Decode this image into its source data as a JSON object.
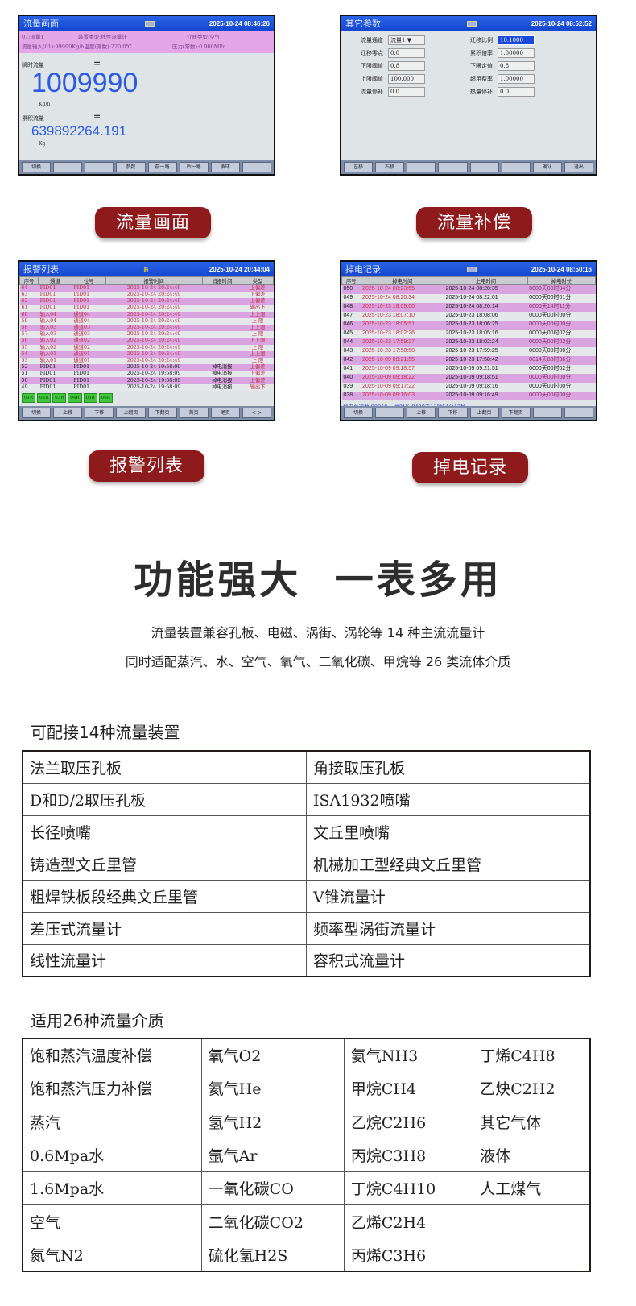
{
  "screens": {
    "flow": {
      "title": "流量画面",
      "datetime": "2025-10-24 08:46:26",
      "info": {
        "channel": "01:流量1",
        "device_type": "装置类型:线性流量计",
        "medium": "介质类型:空气",
        "input": "流量输入(01):99999Kg/h温度(常数):220.0℃",
        "pressure": "压力(常数):0.900MPa"
      },
      "instant_label": "瞬时流量",
      "eq": "=",
      "instant_value": "1009990",
      "instant_unit": "Kg/h",
      "total_label": "累积流量",
      "total_value": "639892264.191",
      "total_unit": "Kg",
      "buttons": [
        "切换",
        "",
        "",
        "参数",
        "前一路",
        "后一路",
        "循环",
        ""
      ]
    },
    "params": {
      "title": "其它参数",
      "datetime": "2025-10-24 08:52:52",
      "fields": [
        {
          "label": "流量通道",
          "value": "流量1 ▼"
        },
        {
          "label": "迁移比例",
          "value": "10.1000",
          "selected": true
        },
        {
          "label": "迁移零点",
          "value": "0.0"
        },
        {
          "label": "累积倍率",
          "value": "1.00000"
        },
        {
          "label": "下限阈值",
          "value": "0.8"
        },
        {
          "label": "下限定值",
          "value": "0.8"
        },
        {
          "label": "上限阈值",
          "value": "100.000"
        },
        {
          "label": "超用费率",
          "value": "1.00000"
        },
        {
          "label": "流量停补",
          "value": "0.0"
        },
        {
          "label": "热量停补",
          "value": "0.0"
        }
      ],
      "buttons": [
        "左移",
        "右移",
        "",
        "",
        "",
        "",
        "确认",
        "退出"
      ]
    },
    "alarm": {
      "title": "报警列表",
      "datetime": "2025-10-24 20:44:04",
      "columns": [
        "序号",
        "通道",
        "位号",
        "报警时间",
        "消报时间",
        "类型"
      ],
      "rows": [
        [
          "64",
          "PID01",
          "PID01",
          "2025-10-24 20:24:49",
          "",
          "上偏差"
        ],
        [
          "63",
          "PID01",
          "PID01",
          "2025-10-24 20:24:49",
          "",
          "上偏差"
        ],
        [
          "62",
          "PID01",
          "PID01",
          "2025-10-24 20:24:49",
          "",
          "上偏差"
        ],
        [
          "61",
          "PID01",
          "PID01",
          "2025-10-24 20:24:49",
          "",
          "输出下"
        ],
        [
          "60",
          "输入04",
          "通道04",
          "2025-10-24 20:24:49",
          "",
          "上上限"
        ],
        [
          "59",
          "输入04",
          "通道04",
          "2025-10-24 20:24:49",
          "",
          "上 限"
        ],
        [
          "58",
          "输入03",
          "通道03",
          "2025-10-24 20:24:49",
          "",
          "上上限"
        ],
        [
          "57",
          "输入03",
          "通道03",
          "2025-10-24 20:24:49",
          "",
          "上 限"
        ],
        [
          "56",
          "输入02",
          "通道02",
          "2025-10-24 20:24:49",
          "",
          "上上限"
        ],
        [
          "55",
          "输入02",
          "通道02",
          "2025-10-24 20:24:49",
          "",
          "上 限"
        ],
        [
          "54",
          "输入01",
          "通道01",
          "2025-10-24 20:24:49",
          "",
          "上上限"
        ],
        [
          "53",
          "输入01",
          "通道01",
          "2025-10-24 20:24:49",
          "",
          "上 限"
        ],
        [
          "52",
          "PID01",
          "PID01",
          "2025-10-24 19:58:09",
          "掉电消报",
          "上偏差"
        ],
        [
          "51",
          "PID01",
          "PID01",
          "2025-10-24 19:58:09",
          "掉电消报",
          "上偏差"
        ],
        [
          "50",
          "PID01",
          "PID01",
          "2025-10-24 19:58:09",
          "掉电消报",
          "上偏差"
        ],
        [
          "49",
          "PID01",
          "PID01",
          "2025-10-24 19:58:09",
          "掉电消报",
          "输出下"
        ]
      ],
      "relays": [
        "01R",
        "02R",
        "03R",
        "04R",
        "05R",
        "06R"
      ],
      "buttons": [
        "切换",
        "上移",
        "下移",
        "上翻页",
        "下翻页",
        "首页",
        "尾页",
        "<->"
      ]
    },
    "power": {
      "title": "掉电记录",
      "datetime": "2025-10-24 08:50:16",
      "columns": [
        "序号",
        "掉电时间",
        "上电时间",
        "掉电时长"
      ],
      "rows": [
        [
          "050",
          "2025-10-24 08:23:55",
          "2025-10-24 08:28:35",
          "0000天00时04分"
        ],
        [
          "049",
          "2025-10-24 08:20:34",
          "2025-10-24 08:22:01",
          "0000天00时01分"
        ],
        [
          "048",
          "2025-10-23 18:09:00",
          "2025-10-24 08:20:14",
          "0000天14时11分"
        ],
        [
          "047",
          "2025-10-23 18:07:10",
          "2025-10-23 18:08:06",
          "0000天00时00分"
        ],
        [
          "046",
          "2025-10-23 18:05:51",
          "2025-10-23 18:06:25",
          "0000天00时00分"
        ],
        [
          "045",
          "2025-10-23 18:02:26",
          "2025-10-23 18:05:16",
          "0000天00时02分"
        ],
        [
          "044",
          "2025-10-23 17:59:27",
          "2025-10-23 18:02:24",
          "0000天00时02分"
        ],
        [
          "043",
          "2025-10-23 17:58:58",
          "2025-10-23 17:59:25",
          "0000天00时00分"
        ],
        [
          "042",
          "2025-10-09 09:21:55",
          "2025-10-23 17:58:42",
          "0014天08时36分"
        ],
        [
          "041",
          "2025-10-09 09:18:57",
          "2025-10-09 09:21:51",
          "0000天00时02分"
        ],
        [
          "040",
          "2025-10-09 09:18:22",
          "2025-10-09 09:18:51",
          "0000天00时00分"
        ],
        [
          "039",
          "2025-10-09 09:17:22",
          "2025-10-09 09:18:16",
          "0000天00时00分"
        ],
        [
          "038",
          "2025-10-09 09:16:03",
          "2025-10-09 09:16:49",
          "0000天00时00分"
        ]
      ],
      "summary_count": "掉电总次数:00050",
      "summary_total": "总时长:0420天13时54分17秒",
      "buttons": [
        "切换",
        "",
        "上移",
        "下移",
        "上翻页",
        "下翻页",
        "",
        ""
      ]
    }
  },
  "captions": [
    "流量画面",
    "流量补偿",
    "报警列表",
    "掉电记录"
  ],
  "headline": "功能强大  一表多用",
  "subtitle1": "流量装置兼容孔板、电磁、涡街、涡轮等 14 种主流流量计",
  "subtitle2": "同时适配蒸汽、水、空气、氧气、二氧化碳、甲烷等 26 类流体介质",
  "devices": {
    "title": "可配接14种流量装置",
    "rows": [
      [
        "法兰取压孔板",
        "角接取压孔板"
      ],
      [
        "D和D/2取压孔板",
        "ISA1932喷嘴"
      ],
      [
        "长径喷嘴",
        "文丘里喷嘴"
      ],
      [
        "铸造型文丘里管",
        "机械加工型经典文丘里管"
      ],
      [
        "粗焊铁板段经典文丘里管",
        "V锥流量计"
      ],
      [
        "差压式流量计",
        "频率型涡街流量计"
      ],
      [
        "线性流量计",
        "容积式流量计"
      ]
    ]
  },
  "media": {
    "title": "适用26种流量介质",
    "rows": [
      [
        "饱和蒸汽温度补偿",
        "氧气O2",
        "氨气NH3",
        "丁烯C4H8"
      ],
      [
        "饱和蒸汽压力补偿",
        "氦气He",
        "甲烷CH4",
        "乙炔C2H2"
      ],
      [
        "蒸汽",
        "氢气H2",
        "乙烷C2H6",
        "其它气体"
      ],
      [
        "0.6Mpa水",
        "氩气Ar",
        "丙烷C3H8",
        "液体"
      ],
      [
        "1.6Mpa水",
        "一氧化碳CO",
        "丁烷C4H10",
        "人工煤气"
      ],
      [
        "空气",
        "二氧化碳CO2",
        "乙烯C2H4",
        ""
      ],
      [
        "氮气N2",
        "硫化氢H2S",
        "丙烯C3H6",
        ""
      ]
    ]
  },
  "colors": {
    "caption_bg": "#8e1a1c",
    "titlebar": "#1a4fd6",
    "row_highlight": "#d9a4e0",
    "value_blue": "#2a5ae6"
  }
}
